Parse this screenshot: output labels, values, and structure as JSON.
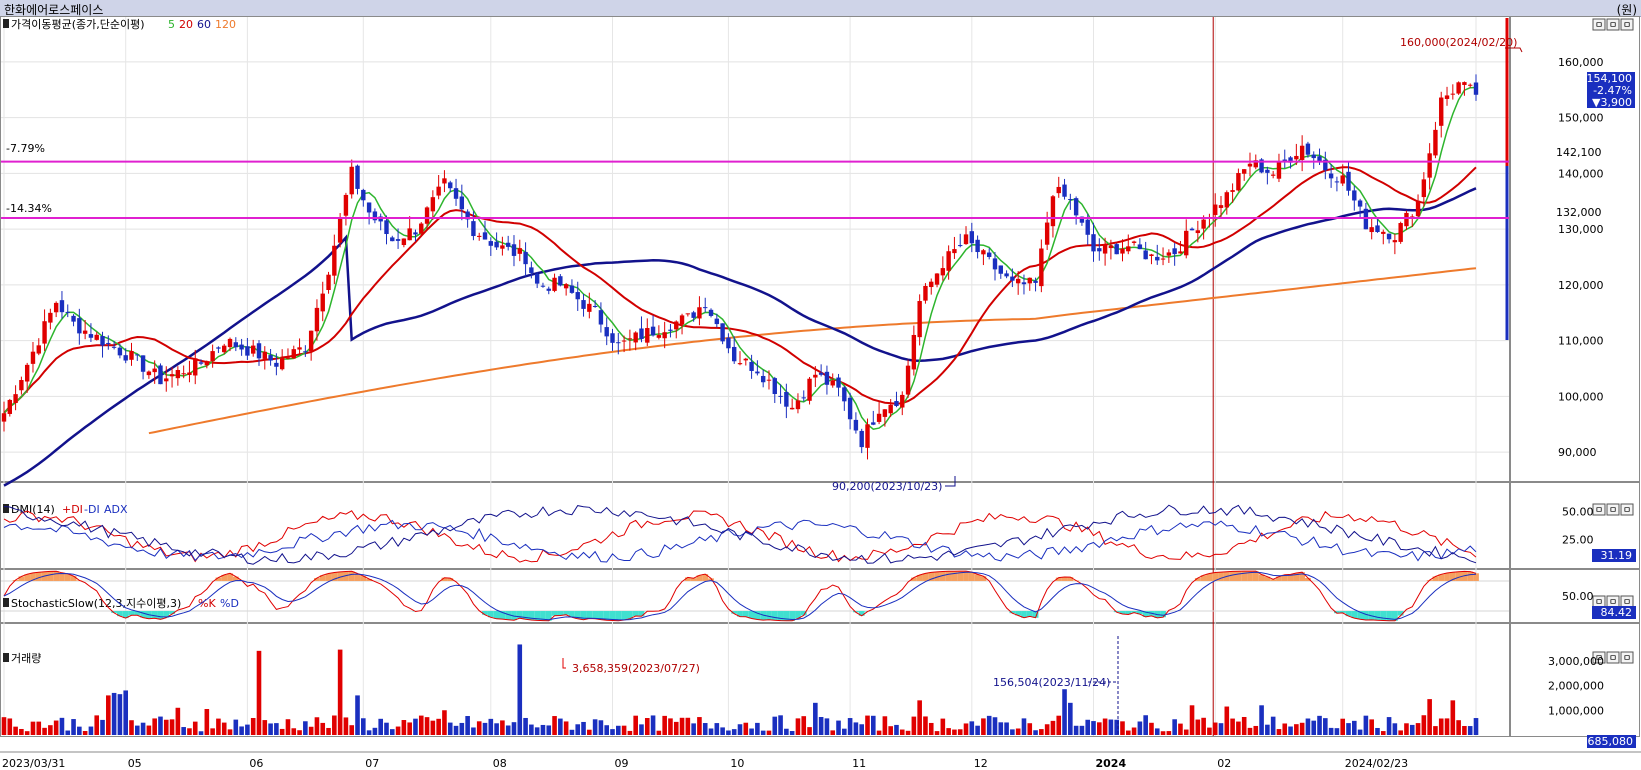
{
  "window": {
    "title": "한화에어로스페이스",
    "unit": "(원)"
  },
  "colors": {
    "up": "#e00000",
    "down": "#1a2fbf",
    "ma5": "#2db52d",
    "ma20": "#d10000",
    "ma60": "#12128c",
    "ma120": "#ee7a2c",
    "hline": "#e020d0",
    "cursor": "#b00000",
    "stoch_fill_high": "#f5a060",
    "stoch_fill_low": "#40e0d0"
  },
  "panels": {
    "price": {
      "label": "가격이동평균(종가,단순이평)",
      "periods": [
        "5",
        "20",
        "60",
        "120"
      ]
    },
    "dmi": {
      "label": "DMI(14)",
      "series": [
        "+DI",
        "-DI",
        "ADX"
      ],
      "tag": "31.19"
    },
    "stoch": {
      "label": "StochasticSlow(12,3,지수이평,3)",
      "series": [
        "%K",
        "%D"
      ],
      "tag": "84.42"
    },
    "volume": {
      "label": "거래량",
      "tag": "685,080"
    }
  },
  "panel_buttons": [
    "ㅁ",
    "ㅁ",
    "ㅁ"
  ],
  "price_tag": {
    "price": "154,100",
    "change_pct": "-2.47%",
    "change": "▼3,900"
  },
  "chart_data": [
    {
      "type": "candlestick",
      "x": [
        "2023/03/31",
        "05",
        "06",
        "07",
        "08",
        "09",
        "10",
        "11",
        "12",
        "2024",
        "02",
        "2024/02/23"
      ],
      "ylim": [
        85000,
        165000
      ],
      "yticks": [
        "160,000",
        "150,000",
        "140,000",
        "130,000",
        "120,000",
        "110,000",
        "100,000",
        "90,000"
      ],
      "hlines": [
        {
          "pct": "-7.79%",
          "value_label": "142,100",
          "value": 142100
        },
        {
          "pct": "-14.34%",
          "value_label": "132,000",
          "value": 132000
        }
      ],
      "annotations": {
        "high": "160,000(2024/02/20)",
        "low": "90,200(2023/10/23)"
      },
      "keypoints": [
        [
          0,
          97000
        ],
        [
          5,
          108000
        ],
        [
          9,
          117000
        ],
        [
          12,
          113000
        ],
        [
          17,
          110000
        ],
        [
          22,
          107000
        ],
        [
          27,
          103000
        ],
        [
          34,
          106000
        ],
        [
          38,
          110000
        ],
        [
          43,
          108000
        ],
        [
          47,
          106000
        ],
        [
          52,
          109000
        ],
        [
          56,
          123000
        ],
        [
          60,
          140000
        ],
        [
          63,
          133000
        ],
        [
          67,
          128000
        ],
        [
          71,
          130000
        ],
        [
          76,
          138000
        ],
        [
          81,
          130000
        ],
        [
          85,
          127000
        ],
        [
          90,
          125000
        ],
        [
          92,
          120000
        ],
        [
          96,
          120000
        ],
        [
          102,
          115000
        ],
        [
          106,
          109000
        ],
        [
          110,
          111000
        ],
        [
          115,
          113000
        ],
        [
          118,
          114000
        ],
        [
          121,
          117000
        ],
        [
          126,
          107000
        ],
        [
          130,
          105000
        ],
        [
          136,
          98000
        ],
        [
          140,
          104000
        ],
        [
          144,
          101000
        ],
        [
          148,
          92000
        ],
        [
          151,
          98000
        ],
        [
          155,
          100000
        ],
        [
          158,
          117000
        ],
        [
          162,
          124000
        ],
        [
          166,
          128000
        ],
        [
          169,
          125000
        ],
        [
          174,
          120000
        ],
        [
          178,
          120000
        ],
        [
          181,
          137000
        ],
        [
          184,
          135000
        ],
        [
          188,
          126000
        ],
        [
          194,
          127000
        ],
        [
          198,
          125000
        ],
        [
          202,
          126000
        ],
        [
          206,
          131000
        ],
        [
          211,
          136000
        ],
        [
          215,
          142000
        ],
        [
          219,
          140000
        ],
        [
          224,
          145000
        ],
        [
          228,
          141000
        ],
        [
          231,
          139000
        ],
        [
          235,
          131000
        ],
        [
          240,
          129000
        ],
        [
          244,
          135000
        ],
        [
          248,
          153000
        ],
        [
          251,
          156000
        ],
        [
          254,
          154100
        ]
      ],
      "ma_periods": [
        5,
        20,
        60,
        120
      ]
    },
    {
      "type": "line",
      "name": "DMI(14)",
      "series": [
        "+DI",
        "-DI",
        "ADX"
      ],
      "ylim": [
        0,
        75
      ],
      "yticks": [
        "50.00",
        "25.00"
      ]
    },
    {
      "type": "line",
      "name": "StochasticSlow(12,3,지수이평,3)",
      "series": [
        "%K",
        "%D"
      ],
      "ylim": [
        0,
        100
      ],
      "yticks": [
        "50.00"
      ]
    },
    {
      "type": "bar",
      "name": "거래량",
      "ylim": [
        0,
        4000000
      ],
      "yticks": [
        "3,000,000",
        "2,000,000",
        "1,000,000"
      ],
      "annotations": {
        "max": "3,658,359(2023/07/27)",
        "marker": "156,504(2023/11/24)"
      },
      "spikes": [
        [
          44,
          3400000
        ],
        [
          58,
          3450000
        ],
        [
          89,
          3658359
        ],
        [
          18,
          1600000
        ],
        [
          19,
          1700000
        ],
        [
          20,
          1650000
        ],
        [
          21,
          1800000
        ],
        [
          30,
          1100000
        ],
        [
          35,
          1050000
        ],
        [
          61,
          1600000
        ],
        [
          76,
          1000000
        ],
        [
          140,
          1300000
        ],
        [
          158,
          1400000
        ],
        [
          183,
          1850000
        ],
        [
          184,
          1300000
        ],
        [
          205,
          1200000
        ],
        [
          211,
          1150000
        ],
        [
          217,
          1200000
        ],
        [
          246,
          1450000
        ],
        [
          250,
          1400000
        ],
        [
          254,
          685080
        ]
      ]
    }
  ]
}
